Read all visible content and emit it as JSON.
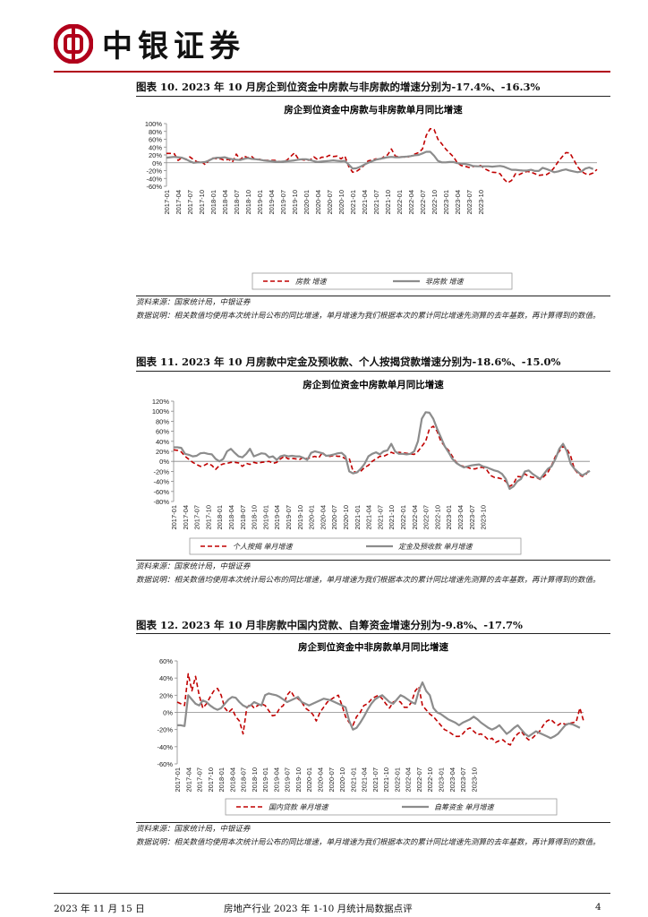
{
  "header": {
    "brand": "中银证券",
    "brand_color": "#b1001b"
  },
  "footer": {
    "date": "2023 年 11 月 15 日",
    "doc_title": "房地产行业 2023 年 1-10 月统计局数据点评",
    "page": "4"
  },
  "figures": [
    {
      "title": "图表 10. 2023 年 10 月房企到位资金中房款与非房款的增速分别为-17.4%、-16.3%",
      "source": "资料来源：国家统计局，中银证券",
      "note": "数据说明：相关数值均使用本次统计局公布的同比增速，单月增速为我们根据本次的累计同比增速先测算的去年基数，再计算得到的数值。"
    },
    {
      "title": "图表 11. 2023 年 10 月房款中定金及预收款、个人按揭贷款增速分别为-18.6%、-15.0%",
      "source": "资料来源：国家统计局，中银证券",
      "note": "数据说明：相关数值均使用本次统计局公布的同比增速，单月增速为我们根据本次的累计同比增速先测算的去年基数，再计算得到的数值。"
    },
    {
      "title": "图表 12. 2023 年 10 月非房款中国内贷款、自筹资金增速分别为-9.8%、-17.7%",
      "source": "资料来源：国家统计局，中银证券",
      "note": "数据说明：相关数值均使用本次统计局公布的同比增速，单月增速为我们根据本次的累计同比增速先测算的去年基数，再计算得到的数值。"
    }
  ],
  "chart_data": [
    {
      "type": "line",
      "title": "房企到位资金中房款与非房款单月同比增速",
      "ylim": [
        -60,
        100
      ],
      "yticks": [
        100,
        80,
        60,
        40,
        20,
        0,
        -20,
        -40,
        -60
      ],
      "ytick_format": "%",
      "xticks": [
        "2017-01",
        "2017-04",
        "2017-07",
        "2017-10",
        "2018-01",
        "2018-04",
        "2018-07",
        "2018-10",
        "2019-01",
        "2019-04",
        "2019-07",
        "2019-10",
        "2020-01",
        "2020-04",
        "2020-07",
        "2020-10",
        "2021-01",
        "2021-04",
        "2021-07",
        "2021-10",
        "2022-01",
        "2022-04",
        "2022-07",
        "2022-10",
        "2023-01",
        "2023-04",
        "2023-07",
        "2023-10"
      ],
      "grid": false,
      "legend_position": "bottom",
      "series": [
        {
          "name": "房款 增速",
          "color": "#c00000",
          "style": "dashed",
          "values": [
            24,
            24,
            23,
            6,
            13,
            8,
            15,
            8,
            2,
            3,
            -5,
            7,
            12,
            10,
            10,
            6,
            9,
            2,
            22,
            8,
            17,
            13,
            16,
            7,
            9,
            6,
            6,
            6,
            6,
            3,
            3,
            6,
            16,
            25,
            10,
            8,
            6,
            7,
            15,
            8,
            14,
            14,
            19,
            16,
            17,
            10,
            17,
            -10,
            -24,
            -22,
            -15,
            -6,
            5,
            7,
            10,
            8,
            15,
            20,
            35,
            17,
            15,
            15,
            14,
            17,
            22,
            26,
            35,
            70,
            87,
            85,
            60,
            48,
            35,
            25,
            15,
            0,
            -7,
            -9,
            -12,
            -10,
            -8,
            -7,
            -15,
            -20,
            -24,
            -25,
            -28,
            -42,
            -51,
            -45,
            -28,
            -30,
            -25,
            -22,
            -24,
            -28,
            -32,
            -31,
            -30,
            -24,
            -12,
            3,
            15,
            26,
            25,
            8,
            -10,
            -22,
            -28,
            -30,
            -26,
            -17
          ]
        },
        {
          "name": "非房款 增速",
          "color": "#8c8c8c",
          "style": "solid",
          "values": [
            13,
            14,
            15,
            14,
            13,
            9,
            4,
            0,
            1,
            1,
            2,
            6,
            11,
            13,
            13,
            14,
            11,
            9,
            8,
            7,
            10,
            12,
            10,
            9,
            8,
            6,
            5,
            4,
            3,
            2,
            3,
            4,
            5,
            6,
            8,
            9,
            9,
            7,
            4,
            2,
            3,
            4,
            5,
            6,
            5,
            4,
            5,
            -5,
            -15,
            -14,
            -10,
            -5,
            0,
            4,
            8,
            10,
            12,
            14,
            15,
            14,
            14,
            15,
            16,
            17,
            19,
            20,
            24,
            28,
            28,
            18,
            5,
            1,
            1,
            2,
            2,
            -1,
            -2,
            -3,
            -5,
            -8,
            -9,
            -9,
            -9,
            -9,
            -10,
            -9,
            -8,
            -10,
            -14,
            -18,
            -18,
            -19,
            -20,
            -20,
            -18,
            -21,
            -21,
            -13,
            -16,
            -20,
            -24,
            -22,
            -19,
            -17,
            -20,
            -22,
            -24,
            -22,
            -15,
            -12,
            -16
          ]
        }
      ]
    },
    {
      "type": "line",
      "title": "房企到位资金中房款单月同比增速",
      "ylim": [
        -80,
        120
      ],
      "yticks": [
        120,
        100,
        80,
        60,
        40,
        20,
        0,
        -20,
        -40,
        -60,
        -80
      ],
      "ytick_format": "%",
      "xticks": [
        "2017-01",
        "2017-04",
        "2017-07",
        "2017-10",
        "2018-01",
        "2018-04",
        "2018-07",
        "2018-10",
        "2019-01",
        "2019-04",
        "2019-07",
        "2019-10",
        "2020-01",
        "2020-04",
        "2020-07",
        "2020-10",
        "2021-01",
        "2021-04",
        "2021-07",
        "2021-10",
        "2022-01",
        "2022-04",
        "2022-07",
        "2022-10",
        "2023-01",
        "2023-04",
        "2023-07",
        "2023-10"
      ],
      "grid": false,
      "legend_position": "bottom",
      "series": [
        {
          "name": "个人按揭 单月增速",
          "color": "#c00000",
          "style": "dashed",
          "values": [
            23,
            22,
            19,
            10,
            4,
            -2,
            -6,
            -10,
            -8,
            -4,
            -8,
            -16,
            -8,
            -5,
            -4,
            -2,
            -2,
            -3,
            -10,
            -4,
            -6,
            -2,
            -4,
            -2,
            -1,
            0,
            -4,
            -2,
            5,
            10,
            5,
            6,
            5,
            4,
            8,
            5,
            8,
            10,
            7,
            18,
            10,
            10,
            12,
            10,
            10,
            5,
            6,
            -20,
            -22,
            -20,
            -12,
            -8,
            0,
            5,
            10,
            10,
            14,
            18,
            15,
            18,
            17,
            16,
            15,
            14,
            20,
            30,
            40,
            65,
            70,
            60,
            40,
            30,
            22,
            10,
            -2,
            -8,
            -10,
            -12,
            -15,
            -15,
            -12,
            -12,
            -17,
            -28,
            -32,
            -33,
            -35,
            -40,
            -50,
            -45,
            -30,
            -31,
            -25,
            -30,
            -32,
            -32,
            -36,
            -30,
            -22,
            -8,
            10,
            20,
            30,
            25,
            10,
            -16,
            -25,
            -30,
            -26,
            -15
          ]
        },
        {
          "name": "定金及预收款 单月增速",
          "color": "#8c8c8c",
          "style": "solid",
          "values": [
            28,
            28,
            27,
            15,
            13,
            10,
            11,
            16,
            17,
            15,
            14,
            5,
            0,
            5,
            20,
            25,
            17,
            10,
            8,
            15,
            25,
            10,
            13,
            16,
            15,
            8,
            10,
            3,
            10,
            12,
            10,
            11,
            10,
            10,
            7,
            3,
            17,
            20,
            18,
            16,
            11,
            12,
            14,
            16,
            17,
            10,
            -20,
            -24,
            -22,
            -15,
            -5,
            10,
            15,
            18,
            14,
            20,
            22,
            35,
            20,
            15,
            15,
            14,
            15,
            20,
            40,
            85,
            98,
            97,
            85,
            65,
            48,
            30,
            18,
            5,
            -3,
            -8,
            -12,
            -10,
            -8,
            -7,
            -6,
            -10,
            -12,
            -15,
            -18,
            -20,
            -25,
            -35,
            -55,
            -50,
            -40,
            -35,
            -20,
            -18,
            -25,
            -30,
            -35,
            -25,
            -15,
            -10,
            5,
            25,
            35,
            20,
            -5,
            -15,
            -22,
            -28,
            -24,
            -19
          ]
        }
      ]
    },
    {
      "type": "line",
      "title": "房企到位资金中非房款单月同比增速",
      "ylim": [
        -60,
        60
      ],
      "yticks": [
        60,
        40,
        20,
        0,
        -20,
        -40,
        -60
      ],
      "ytick_format": "%",
      "xticks": [
        "2017-01",
        "2017-04",
        "2017-07",
        "2017-10",
        "2018-01",
        "2018-04",
        "2018-07",
        "2018-10",
        "2019-01",
        "2019-04",
        "2019-07",
        "2019-10",
        "2020-01",
        "2020-04",
        "2020-07",
        "2020-10",
        "2021-01",
        "2021-04",
        "2021-07",
        "2021-10",
        "2022-01",
        "2022-04",
        "2022-07",
        "2022-10",
        "2023-01",
        "2023-04",
        "2023-07",
        "2023-10"
      ],
      "grid": false,
      "legend_position": "bottom",
      "series": [
        {
          "name": "国内贷款 单月增速",
          "color": "#c00000",
          "style": "dashed",
          "values": [
            12,
            10,
            8,
            45,
            25,
            42,
            20,
            5,
            10,
            18,
            25,
            28,
            20,
            5,
            0,
            4,
            -5,
            -10,
            -25,
            5,
            10,
            5,
            8,
            10,
            8,
            2,
            -4,
            -3,
            5,
            8,
            20,
            25,
            18,
            16,
            12,
            5,
            2,
            -2,
            -10,
            0,
            6,
            12,
            15,
            18,
            20,
            8,
            -5,
            -12,
            -15,
            -5,
            0,
            8,
            10,
            15,
            18,
            20,
            16,
            10,
            5,
            12,
            14,
            12,
            6,
            6,
            12,
            25,
            30,
            8,
            3,
            -2,
            -5,
            -10,
            -15,
            -20,
            -22,
            -25,
            -28,
            -28,
            -25,
            -20,
            -18,
            -22,
            -26,
            -25,
            -28,
            -32,
            -30,
            -35,
            -33,
            -32,
            -36,
            -38,
            -30,
            -25,
            -22,
            -28,
            -32,
            -30,
            -26,
            -22,
            -15,
            -10,
            -8,
            -12,
            -15,
            -12,
            -14,
            -13,
            -12,
            -11,
            5,
            -10
          ]
        },
        {
          "name": "自筹资金 单月增速",
          "color": "#8c8c8c",
          "style": "solid",
          "values": [
            -15,
            -15,
            -16,
            20,
            15,
            10,
            8,
            14,
            12,
            8,
            5,
            3,
            5,
            10,
            15,
            18,
            17,
            12,
            8,
            6,
            8,
            12,
            10,
            8,
            20,
            22,
            21,
            20,
            18,
            15,
            12,
            14,
            16,
            18,
            12,
            10,
            8,
            10,
            12,
            14,
            16,
            15,
            14,
            12,
            10,
            8,
            6,
            -10,
            -20,
            -18,
            -12,
            -5,
            3,
            10,
            15,
            18,
            20,
            16,
            12,
            10,
            15,
            20,
            18,
            15,
            12,
            10,
            25,
            35,
            25,
            20,
            5,
            0,
            -2,
            -5,
            -8,
            -10,
            -12,
            -15,
            -12,
            -10,
            -8,
            -5,
            -8,
            -12,
            -15,
            -18,
            -20,
            -18,
            -15,
            -20,
            -25,
            -22,
            -18,
            -15,
            -20,
            -25,
            -28,
            -25,
            -22,
            -24,
            -26,
            -28,
            -30,
            -28,
            -25,
            -20,
            -15,
            -13,
            -14,
            -16,
            -18
          ]
        }
      ]
    }
  ]
}
